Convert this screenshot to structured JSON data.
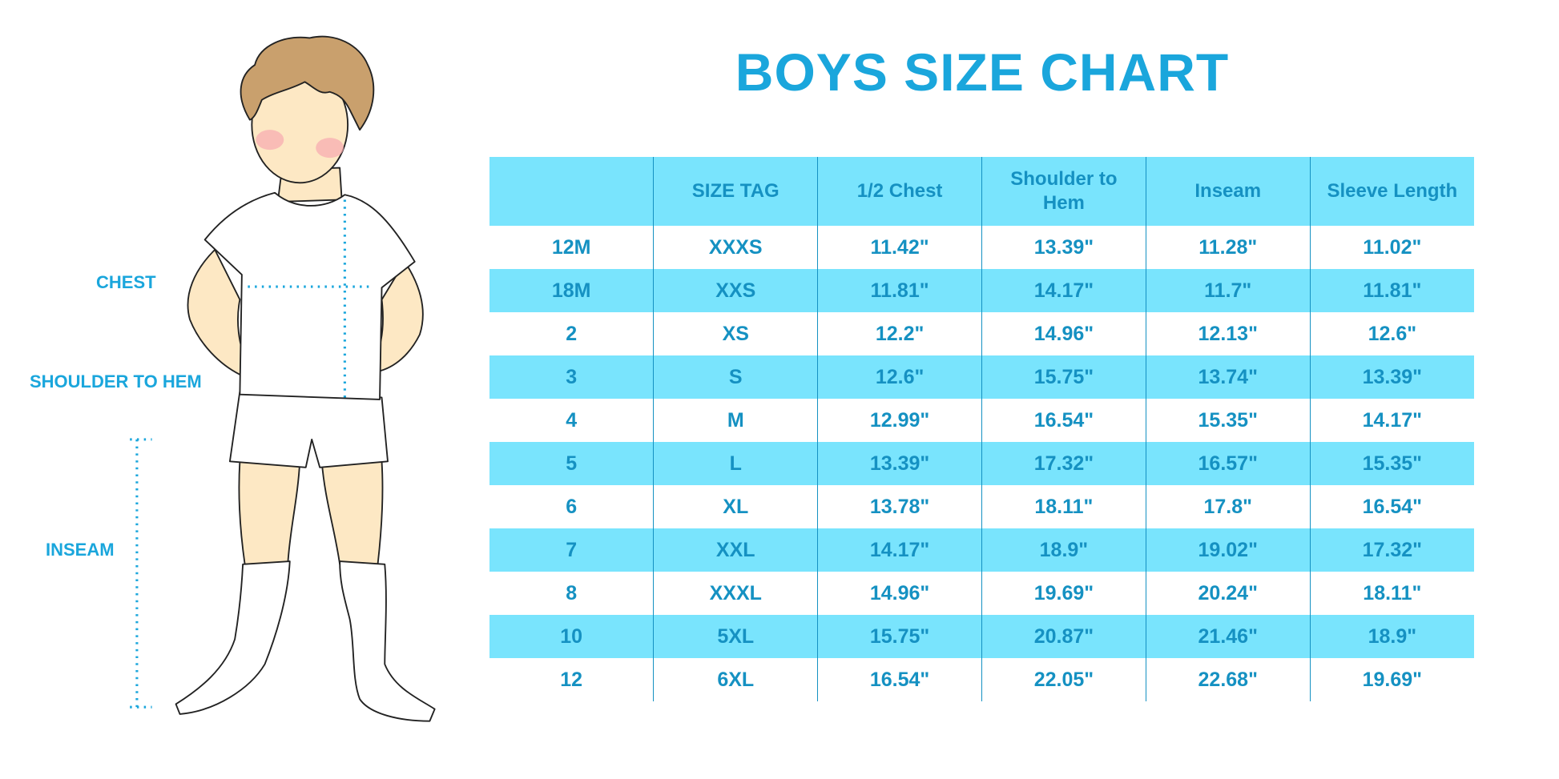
{
  "title": "BOYS SIZE CHART",
  "measure_labels": {
    "chest": "CHEST",
    "shoulder_to_hem": "SHOULDER TO HEM",
    "inseam": "INSEAM"
  },
  "colors": {
    "accent": "#1aa6dc",
    "header_bg": "#79e4fd",
    "text": "#1591c2"
  },
  "table": {
    "headers": [
      "",
      "SIZE TAG",
      "1/2 Chest",
      "Shoulder to Hem",
      "Inseam",
      "Sleeve Length"
    ],
    "rows": [
      [
        "12M",
        "XXXS",
        "11.42\"",
        "13.39\"",
        "11.28\"",
        "11.02\""
      ],
      [
        "18M",
        "XXS",
        "11.81\"",
        "14.17\"",
        "11.7\"",
        "11.81\""
      ],
      [
        "2",
        "XS",
        "12.2\"",
        "14.96\"",
        "12.13\"",
        "12.6\""
      ],
      [
        "3",
        "S",
        "12.6\"",
        "15.75\"",
        "13.74\"",
        "13.39\""
      ],
      [
        "4",
        "M",
        "12.99\"",
        "16.54\"",
        "15.35\"",
        "14.17\""
      ],
      [
        "5",
        "L",
        "13.39\"",
        "17.32\"",
        "16.57\"",
        "15.35\""
      ],
      [
        "6",
        "XL",
        "13.78\"",
        "18.11\"",
        "17.8\"",
        "16.54\""
      ],
      [
        "7",
        "XXL",
        "14.17\"",
        "18.9\"",
        "19.02\"",
        "17.32\""
      ],
      [
        "8",
        "XXXL",
        "14.96\"",
        "19.69\"",
        "20.24\"",
        "18.11\""
      ],
      [
        "10",
        "5XL",
        "15.75\"",
        "20.87\"",
        "21.46\"",
        "18.9\""
      ],
      [
        "12",
        "6XL",
        "16.54\"",
        "22.05\"",
        "22.68\"",
        "19.69\""
      ]
    ]
  }
}
